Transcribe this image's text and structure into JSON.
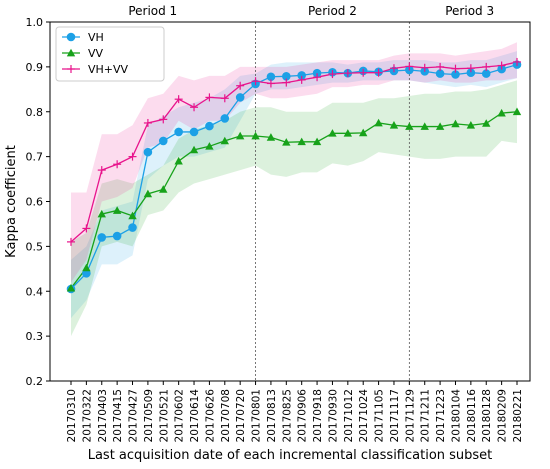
{
  "chart_data": {
    "type": "line",
    "title": "",
    "xlabel": "Last acquisition date of each incremental classification subset",
    "ylabel": "Kappa coefficient",
    "ylim": [
      0.2,
      1.0
    ],
    "yticks": [
      "0.2",
      "0.3",
      "0.4",
      "0.5",
      "0.6",
      "0.7",
      "0.8",
      "0.9",
      "1.0"
    ],
    "grid": false,
    "legend_position": "top-left",
    "categories": [
      "20170310",
      "20170322",
      "20170403",
      "20170415",
      "20170427",
      "20170509",
      "20170521",
      "20170602",
      "20170614",
      "20170626",
      "20170708",
      "20170720",
      "20170801",
      "20170813",
      "20170825",
      "20170906",
      "20170918",
      "20170930",
      "20171012",
      "20171024",
      "20171105",
      "20171117",
      "20171129",
      "20171211",
      "20171223",
      "20180104",
      "20180116",
      "20180128",
      "20180209",
      "20180221"
    ],
    "periods": [
      {
        "label": "Period 1",
        "start_index": 0,
        "end_index": 12
      },
      {
        "label": "Period 2",
        "start_index": 12,
        "end_index": 22
      },
      {
        "label": "Period 3",
        "start_index": 22,
        "end_index": 29
      }
    ],
    "series": [
      {
        "name": "VH",
        "color": "#1ca0e6",
        "marker": "circle",
        "values": [
          0.405,
          0.44,
          0.52,
          0.523,
          0.542,
          0.71,
          0.735,
          0.755,
          0.755,
          0.768,
          0.785,
          0.832,
          0.862,
          0.878,
          0.879,
          0.881,
          0.886,
          0.888,
          0.886,
          0.891,
          0.889,
          0.891,
          0.893,
          0.89,
          0.885,
          0.883,
          0.887,
          0.885,
          0.895,
          0.905
        ],
        "upper": [
          0.47,
          0.5,
          0.58,
          0.59,
          0.6,
          0.77,
          0.79,
          0.81,
          0.82,
          0.83,
          0.85,
          0.88,
          0.885,
          0.905,
          0.91,
          0.91,
          0.91,
          0.91,
          0.905,
          0.91,
          0.91,
          0.915,
          0.915,
          0.915,
          0.91,
          0.91,
          0.915,
          0.915,
          0.925,
          0.935
        ],
        "lower": [
          0.34,
          0.38,
          0.46,
          0.46,
          0.48,
          0.65,
          0.68,
          0.7,
          0.7,
          0.71,
          0.72,
          0.78,
          0.84,
          0.85,
          0.85,
          0.855,
          0.86,
          0.865,
          0.865,
          0.87,
          0.87,
          0.87,
          0.87,
          0.865,
          0.86,
          0.855,
          0.86,
          0.855,
          0.865,
          0.875
        ]
      },
      {
        "name": "VV",
        "color": "#17a21a",
        "marker": "triangle",
        "values": [
          0.407,
          0.452,
          0.572,
          0.58,
          0.568,
          0.617,
          0.627,
          0.69,
          0.715,
          0.723,
          0.735,
          0.746,
          0.746,
          0.743,
          0.732,
          0.733,
          0.733,
          0.752,
          0.752,
          0.753,
          0.775,
          0.77,
          0.767,
          0.767,
          0.767,
          0.773,
          0.77,
          0.774,
          0.797,
          0.8
        ],
        "upper": [
          0.51,
          0.53,
          0.64,
          0.65,
          0.64,
          0.66,
          0.68,
          0.74,
          0.76,
          0.77,
          0.78,
          0.8,
          0.81,
          0.81,
          0.8,
          0.8,
          0.8,
          0.82,
          0.82,
          0.82,
          0.83,
          0.83,
          0.835,
          0.84,
          0.84,
          0.845,
          0.845,
          0.85,
          0.86,
          0.87
        ],
        "lower": [
          0.3,
          0.37,
          0.5,
          0.51,
          0.5,
          0.57,
          0.58,
          0.62,
          0.64,
          0.65,
          0.66,
          0.67,
          0.68,
          0.66,
          0.655,
          0.665,
          0.665,
          0.685,
          0.68,
          0.69,
          0.71,
          0.705,
          0.7,
          0.695,
          0.695,
          0.7,
          0.7,
          0.7,
          0.735,
          0.73
        ]
      },
      {
        "name": "VH+VV",
        "color": "#e8148c",
        "marker": "plus",
        "values": [
          0.51,
          0.54,
          0.67,
          0.683,
          0.7,
          0.775,
          0.783,
          0.828,
          0.81,
          0.832,
          0.83,
          0.858,
          0.868,
          0.863,
          0.865,
          0.871,
          0.877,
          0.884,
          0.886,
          0.887,
          0.887,
          0.897,
          0.901,
          0.898,
          0.9,
          0.896,
          0.897,
          0.9,
          0.903,
          0.911
        ],
        "upper": [
          0.62,
          0.62,
          0.75,
          0.75,
          0.77,
          0.83,
          0.84,
          0.88,
          0.87,
          0.88,
          0.88,
          0.9,
          0.9,
          0.9,
          0.9,
          0.905,
          0.91,
          0.915,
          0.915,
          0.915,
          0.915,
          0.925,
          0.93,
          0.93,
          0.93,
          0.925,
          0.93,
          0.935,
          0.94,
          0.955
        ],
        "lower": [
          0.42,
          0.47,
          0.6,
          0.61,
          0.63,
          0.72,
          0.73,
          0.78,
          0.76,
          0.78,
          0.78,
          0.82,
          0.84,
          0.83,
          0.83,
          0.835,
          0.84,
          0.855,
          0.855,
          0.86,
          0.86,
          0.87,
          0.87,
          0.865,
          0.87,
          0.865,
          0.865,
          0.87,
          0.87,
          0.875
        ]
      }
    ]
  }
}
